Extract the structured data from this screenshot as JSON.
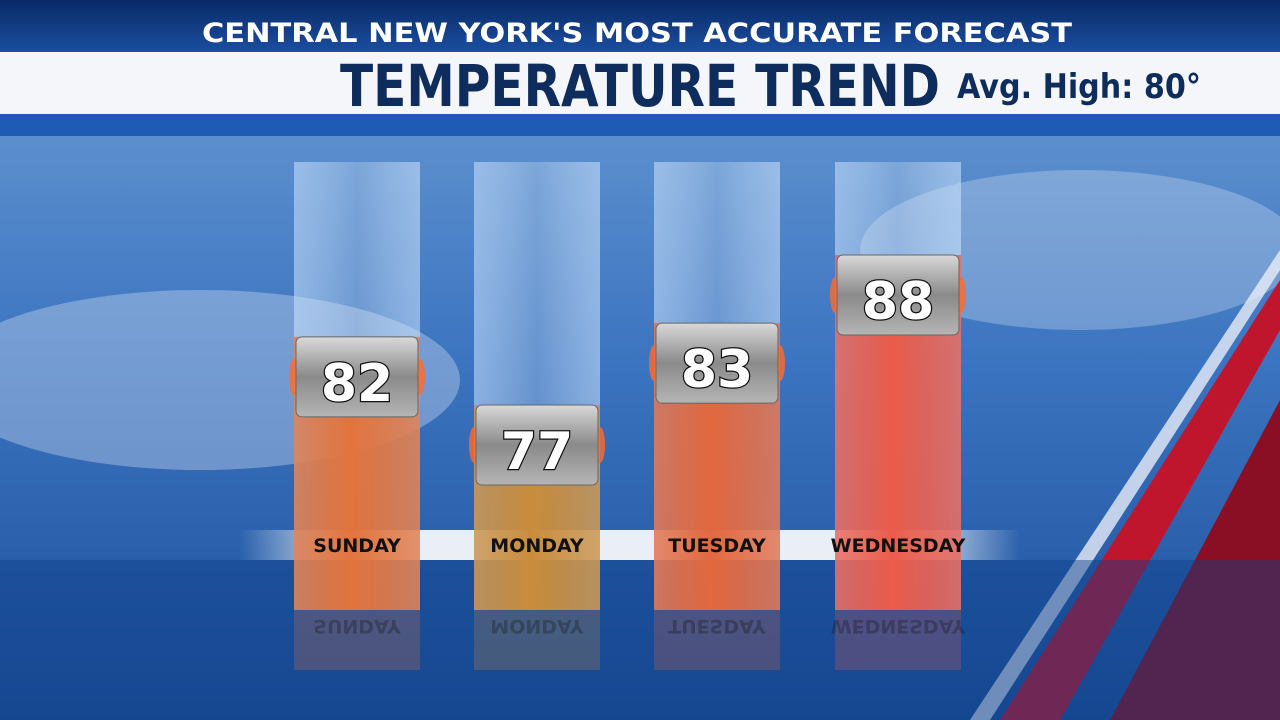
{
  "chart_data": {
    "type": "bar",
    "subtitle": "CENTRAL NEW YORK'S MOST ACCURATE FORECAST",
    "title": "TEMPERATURE TREND",
    "annotation": "Avg. High: 80°",
    "categories": [
      "SUNDAY",
      "MONDAY",
      "TUESDAY",
      "WEDNESDAY"
    ],
    "values": [
      82,
      77,
      83,
      88
    ],
    "colors": [
      "#e2743e",
      "#c98c3c",
      "#e2683f",
      "#ea5c4c"
    ]
  }
}
